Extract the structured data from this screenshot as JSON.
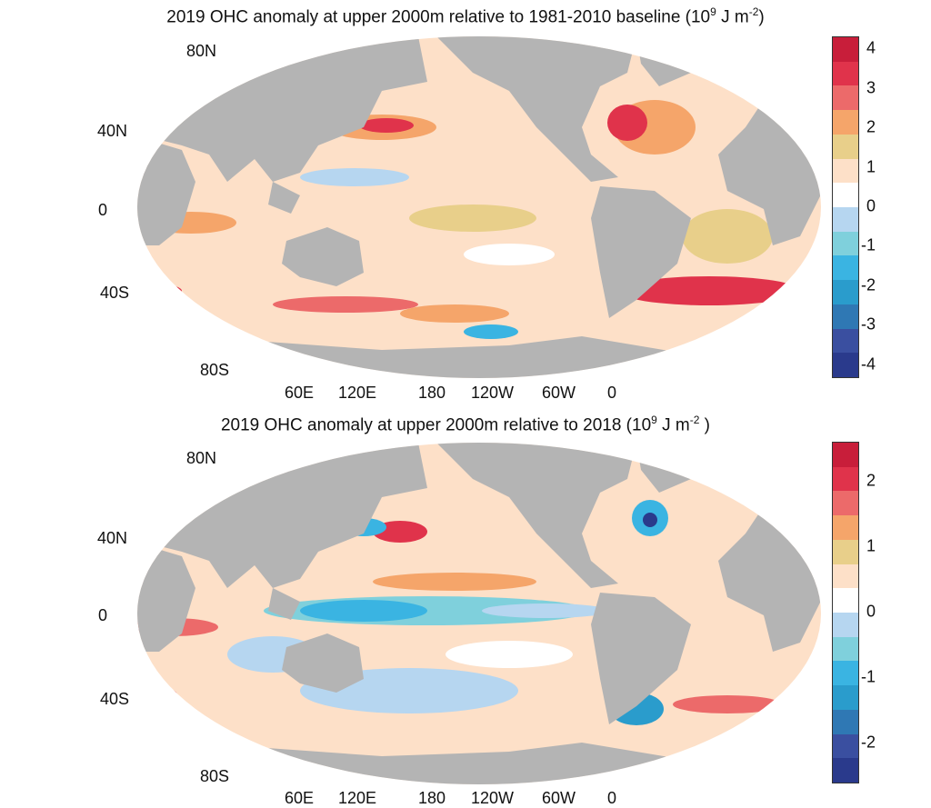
{
  "chart_data": [
    {
      "type": "heatmap",
      "title_parts": {
        "main": "2019 OHC anomaly at upper 2000m relative to 1981-2010 baseline (10",
        "exp1": "9",
        "mid": " J m",
        "exp2": "-2",
        "end": ")"
      },
      "projection": "Robinson",
      "lat_labels": [
        "80N",
        "40N",
        "0",
        "40S",
        "80S"
      ],
      "lon_labels": [
        "60E",
        "120E",
        "180",
        "120W",
        "60W",
        "0"
      ],
      "colorbar": {
        "ticks": [
          "4",
          "3",
          "2",
          "1",
          "0",
          "-1",
          "-2",
          "-3",
          "-4"
        ],
        "range": [
          -4.3,
          4.3
        ],
        "colors": [
          "#c81e3a",
          "#e0334b",
          "#ec6a6a",
          "#f5a56a",
          "#e8cf8a",
          "#fde0c8",
          "#ffffff",
          "#b6d6f0",
          "#7fd0dc",
          "#3ab4e2",
          "#2a9ccc",
          "#2f78b4",
          "#3a4fa0",
          "#2a3a8c"
        ]
      },
      "land_color": "#b4b4b4"
    },
    {
      "type": "heatmap",
      "title_parts": {
        "main": "2019 OHC anomaly at upper 2000m relative to 2018 (10",
        "exp1": "9",
        "mid": " J m",
        "exp2": "-2",
        "end": " )"
      },
      "projection": "Robinson",
      "lat_labels": [
        "80N",
        "40N",
        "0",
        "40S",
        "80S"
      ],
      "lon_labels": [
        "60E",
        "120E",
        "180",
        "120W",
        "60W",
        "0"
      ],
      "colorbar": {
        "ticks": [
          "2",
          "1",
          "0",
          "-1",
          "-2"
        ],
        "range": [
          -2.6,
          2.6
        ],
        "colors": [
          "#c81e3a",
          "#e0334b",
          "#ec6a6a",
          "#f5a56a",
          "#e8cf8a",
          "#fde0c8",
          "#ffffff",
          "#b6d6f0",
          "#7fd0dc",
          "#3ab4e2",
          "#2a9ccc",
          "#2f78b4",
          "#3a4fa0",
          "#2a3a8c"
        ]
      },
      "land_color": "#b4b4b4"
    }
  ]
}
